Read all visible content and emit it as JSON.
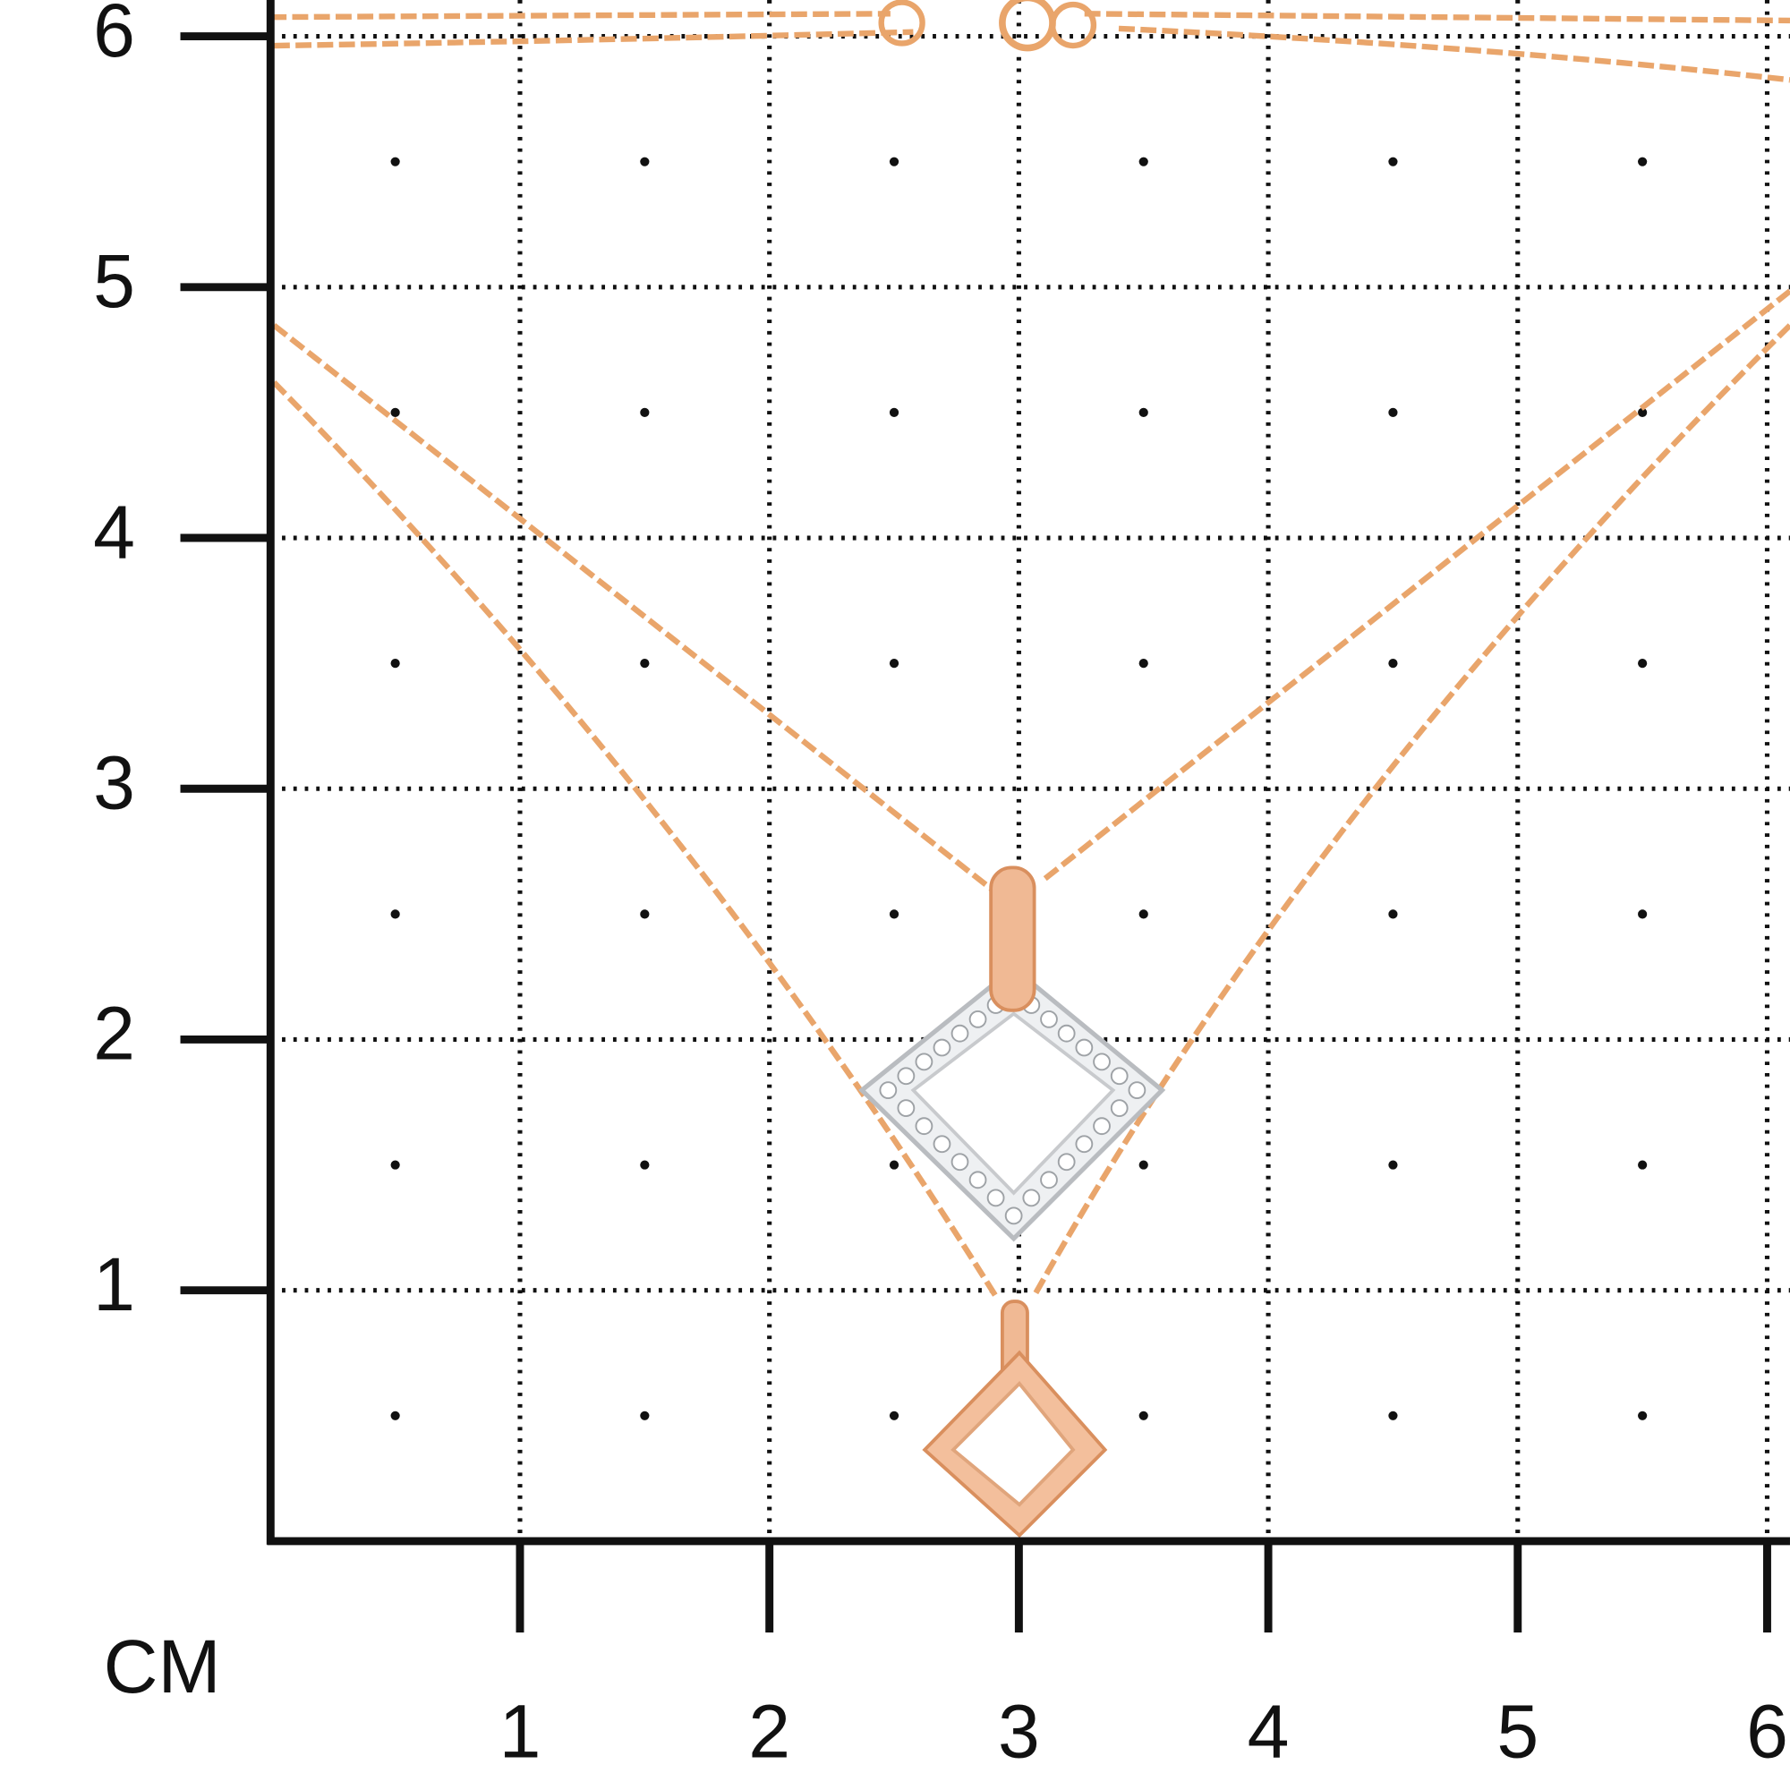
{
  "scale": {
    "y_labels": [
      "1",
      "2",
      "3",
      "4",
      "5",
      "6"
    ],
    "x_labels": [
      "1",
      "2",
      "3",
      "4",
      "5",
      "6"
    ],
    "unit": "CM"
  }
}
